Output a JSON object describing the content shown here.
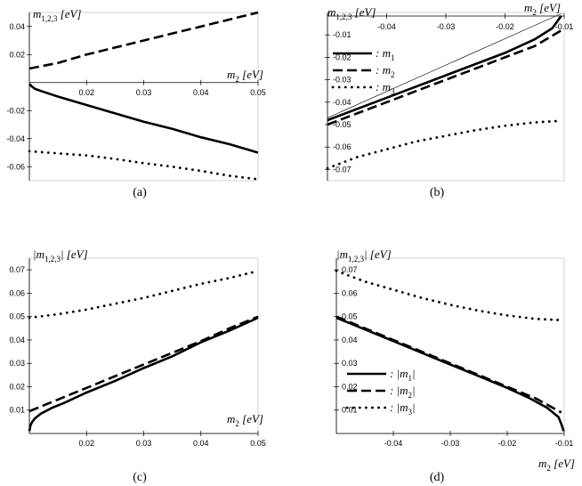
{
  "chart_data": [
    {
      "id": "a",
      "type": "line",
      "panel_label": "(a)",
      "ylabel": "m_{1,2,3} [eV]",
      "xlabel": "m_2 [eV]",
      "xlim": [
        0.01,
        0.05
      ],
      "ylim": [
        -0.07,
        0.05
      ],
      "xticks": [
        0.02,
        0.03,
        0.04,
        0.05
      ],
      "xtick_labels": [
        "0.02",
        "0.03",
        "0.04",
        "0.05"
      ],
      "yticks": [
        0.04,
        0.02,
        -0.02,
        -0.04,
        -0.06
      ],
      "ytick_labels": [
        "0.04",
        "0.02",
        "-0.02",
        "-0.04",
        "-0.06"
      ],
      "series": [
        {
          "style": "solid",
          "x": [
            0.01,
            0.0105,
            0.011,
            0.012,
            0.015,
            0.02,
            0.025,
            0.03,
            0.035,
            0.04,
            0.045,
            0.05
          ],
          "y": [
            -0.001,
            -0.003,
            -0.0045,
            -0.006,
            -0.01,
            -0.016,
            -0.022,
            -0.028,
            -0.033,
            -0.039,
            -0.044,
            -0.05
          ]
        },
        {
          "style": "dashed",
          "x": [
            0.01,
            0.015,
            0.02,
            0.025,
            0.03,
            0.035,
            0.04,
            0.045,
            0.05
          ],
          "y": [
            0.01,
            0.014,
            0.02,
            0.025,
            0.03,
            0.035,
            0.04,
            0.045,
            0.05
          ]
        },
        {
          "style": "dotted",
          "x": [
            0.01,
            0.015,
            0.02,
            0.025,
            0.03,
            0.035,
            0.04,
            0.045,
            0.05
          ],
          "y": [
            -0.049,
            -0.0505,
            -0.052,
            -0.0545,
            -0.0575,
            -0.06,
            -0.063,
            -0.0665,
            -0.069
          ]
        }
      ]
    },
    {
      "id": "b",
      "type": "line",
      "panel_label": "(b)",
      "ylabel": "m_{1,2,3} [eV]",
      "xlabel": "m_2 [eV]",
      "xlim": [
        -0.05,
        -0.01
      ],
      "ylim": [
        -0.075,
        0.0
      ],
      "xticks": [
        -0.04,
        -0.03,
        -0.02,
        -0.01
      ],
      "xtick_labels": [
        "-0.04",
        "-0.03",
        "-0.02",
        "-0.01"
      ],
      "yticks": [
        -0.01,
        -0.02,
        -0.03,
        -0.04,
        -0.05,
        -0.06,
        -0.07
      ],
      "ytick_labels": [
        "-0.01",
        "-0.02",
        "-0.03",
        "-0.04",
        "-0.05",
        "-0.06",
        "-0.07"
      ],
      "legend": [
        "m_1",
        "m_2",
        "m_3"
      ],
      "legend_position": "top-left",
      "series": [
        {
          "name": "m_1",
          "style": "solid",
          "x": [
            -0.05,
            -0.04,
            -0.03,
            -0.02,
            -0.015,
            -0.012,
            -0.0105
          ],
          "y": [
            -0.048,
            -0.038,
            -0.028,
            -0.018,
            -0.012,
            -0.007,
            -0.0015
          ]
        },
        {
          "name": "m_2",
          "style": "dashed",
          "x": [
            -0.05,
            -0.045,
            -0.04,
            -0.035,
            -0.03,
            -0.025,
            -0.02,
            -0.015,
            -0.0105
          ],
          "y": [
            -0.05,
            -0.045,
            -0.04,
            -0.035,
            -0.03,
            -0.025,
            -0.02,
            -0.015,
            -0.008
          ]
        },
        {
          "name": "m_3",
          "style": "dotted",
          "x": [
            -0.05,
            -0.045,
            -0.04,
            -0.035,
            -0.03,
            -0.025,
            -0.02,
            -0.015,
            -0.0105
          ],
          "y": [
            -0.0695,
            -0.0645,
            -0.061,
            -0.0575,
            -0.055,
            -0.0525,
            -0.0505,
            -0.049,
            -0.0483
          ]
        }
      ]
    },
    {
      "id": "c",
      "type": "line",
      "panel_label": "(c)",
      "ylabel": "|m_{1,2,3}| [eV]",
      "xlabel": "m_2 [eV]",
      "xlim": [
        0.01,
        0.05
      ],
      "ylim": [
        0.0,
        0.075
      ],
      "xticks": [
        0.02,
        0.03,
        0.04,
        0.05
      ],
      "xtick_labels": [
        "0.02",
        "0.03",
        "0.04",
        "0.05"
      ],
      "yticks": [
        0.07,
        0.06,
        0.05,
        0.04,
        0.03,
        0.02,
        0.01
      ],
      "ytick_labels": [
        "0.07",
        "0.06",
        "0.05",
        "0.04",
        "0.03",
        "0.02",
        "0.01"
      ],
      "series": [
        {
          "style": "solid",
          "x": [
            0.01,
            0.0102,
            0.0105,
            0.011,
            0.012,
            0.014,
            0.016,
            0.02,
            0.025,
            0.03,
            0.035,
            0.04,
            0.045,
            0.05
          ],
          "y": [
            0.001,
            0.0035,
            0.005,
            0.0065,
            0.0085,
            0.011,
            0.013,
            0.0175,
            0.0225,
            0.028,
            0.033,
            0.039,
            0.044,
            0.0495
          ]
        },
        {
          "style": "dashed",
          "x": [
            0.01,
            0.015,
            0.02,
            0.025,
            0.03,
            0.035,
            0.04,
            0.045,
            0.05
          ],
          "y": [
            0.0095,
            0.0145,
            0.0195,
            0.0245,
            0.0295,
            0.0345,
            0.0395,
            0.045,
            0.05
          ]
        },
        {
          "style": "dotted",
          "x": [
            0.01,
            0.015,
            0.02,
            0.025,
            0.03,
            0.035,
            0.04,
            0.045,
            0.05
          ],
          "y": [
            0.0495,
            0.051,
            0.053,
            0.0555,
            0.058,
            0.061,
            0.064,
            0.0665,
            0.0695
          ]
        }
      ]
    },
    {
      "id": "d",
      "type": "line",
      "panel_label": "(d)",
      "ylabel": "|m_{1,2,3}| [eV]",
      "xlabel": "m_2 [eV]",
      "xlim": [
        -0.05,
        -0.01
      ],
      "ylim": [
        0.0,
        0.075
      ],
      "xticks": [
        -0.04,
        -0.03,
        -0.02,
        -0.01
      ],
      "xtick_labels": [
        "-0.04",
        "-0.03",
        "-0.02",
        "-0.01"
      ],
      "yticks": [
        0.07,
        0.06,
        0.05,
        0.04,
        0.03,
        0.02,
        0.01
      ],
      "ytick_labels": [
        "0.07",
        "0.06",
        "0.05",
        "0.04",
        "0.03",
        "0.02",
        "0.01"
      ],
      "legend": [
        "|m_1|",
        "|m_2|",
        "|m_3|"
      ],
      "legend_position": "bottom-left",
      "series": [
        {
          "name": "|m_1|",
          "style": "solid",
          "x": [
            -0.05,
            -0.045,
            -0.04,
            -0.035,
            -0.03,
            -0.025,
            -0.02,
            -0.016,
            -0.013,
            -0.011,
            -0.0105,
            -0.0101
          ],
          "y": [
            0.0495,
            0.0445,
            0.0395,
            0.0345,
            0.0295,
            0.0245,
            0.0195,
            0.015,
            0.011,
            0.007,
            0.004,
            0.001
          ]
        },
        {
          "name": "|m_2|",
          "style": "dashed",
          "x": [
            -0.05,
            -0.045,
            -0.04,
            -0.035,
            -0.03,
            -0.025,
            -0.02,
            -0.015,
            -0.0105
          ],
          "y": [
            0.05,
            0.045,
            0.04,
            0.035,
            0.03,
            0.025,
            0.02,
            0.015,
            0.009
          ]
        },
        {
          "name": "|m_3|",
          "style": "dotted",
          "x": [
            -0.05,
            -0.045,
            -0.04,
            -0.035,
            -0.03,
            -0.025,
            -0.02,
            -0.015,
            -0.0105
          ],
          "y": [
            0.0695,
            0.065,
            0.0615,
            0.058,
            0.055,
            0.0525,
            0.0505,
            0.049,
            0.0485
          ]
        }
      ]
    }
  ]
}
